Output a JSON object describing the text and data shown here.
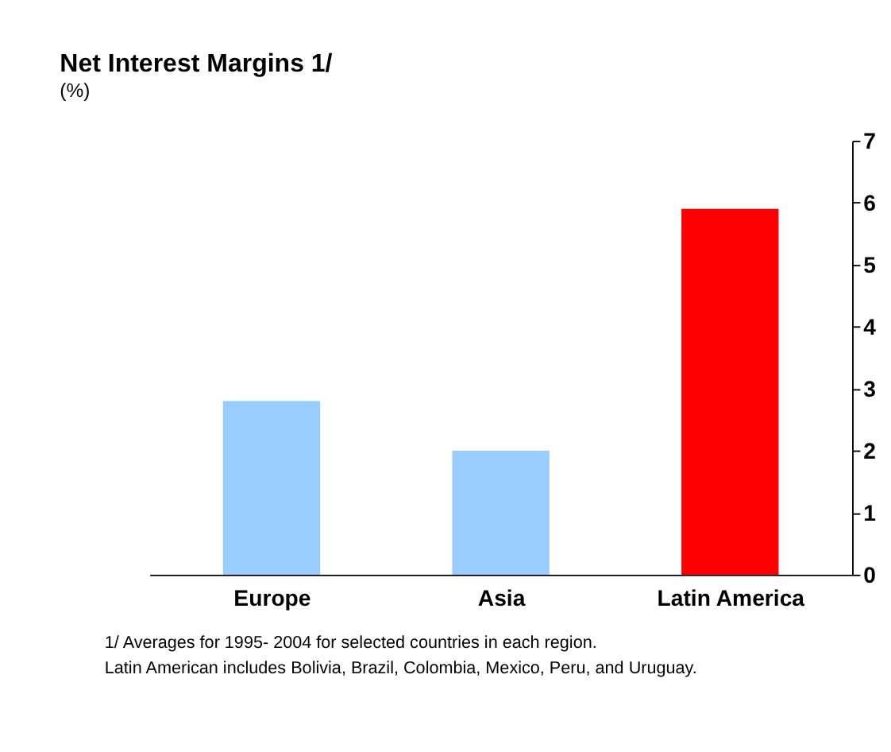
{
  "chart_data": {
    "type": "bar",
    "title": "Net Interest Margins 1/",
    "subtitle": "(%)",
    "categories": [
      "Europe",
      "Asia",
      "Latin America"
    ],
    "values": [
      2.8,
      2.0,
      5.9
    ],
    "colors": [
      "#99ccff",
      "#99ccff",
      "#ff0000"
    ],
    "ylim": [
      0,
      7
    ],
    "yticks": [
      0,
      1,
      2,
      3,
      4,
      5,
      6,
      7
    ],
    "grid": false,
    "annotations": [
      "1/ Averages for 1995- 2004 for selected countries in each region.",
      "Latin American includes Bolivia, Brazil, Colombia, Mexico, Peru, and Uruguay."
    ]
  }
}
